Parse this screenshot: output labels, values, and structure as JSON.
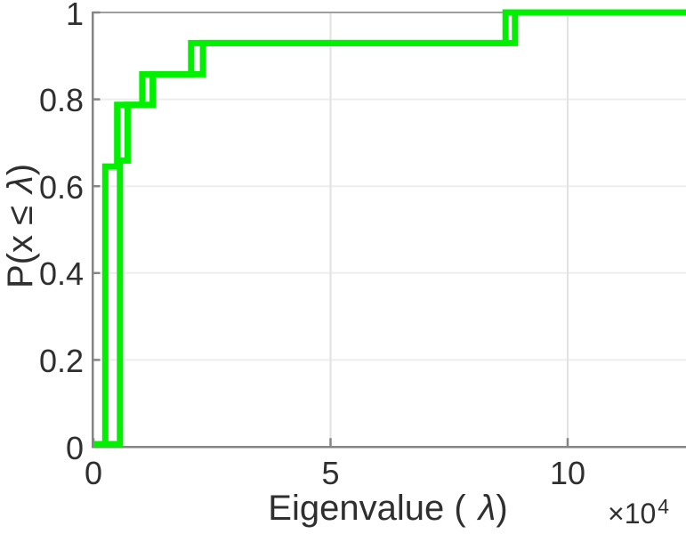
{
  "figure": {
    "background": "#ffffff",
    "line_color": "#00f000",
    "axis_color": "#858585",
    "top_border_color": "#9e9e9e",
    "grid_color_horizontal": "#ededed",
    "grid_color_vertical": "#e2e2e2",
    "text_color": "#2f2f2f"
  },
  "chart_data": {
    "type": "line",
    "subtype": "empirical-cdf-stairs",
    "title": "",
    "xlabel": {
      "prefix": "Eigenvalue (",
      "lambda": "λ",
      "suffix": ")"
    },
    "ylabel": {
      "prefix": "P(x ≤",
      "lambda": "λ",
      "suffix": ")"
    },
    "x_multiplier": {
      "base": "×10",
      "exp": "4"
    },
    "xlim": [
      0,
      12.5
    ],
    "ylim": [
      0,
      1
    ],
    "x_units_note": "x values in units of 10^4",
    "grid": true,
    "legend": "none",
    "xticks": [
      {
        "value": 0,
        "label": "0"
      },
      {
        "value": 5,
        "label": "5"
      },
      {
        "value": 10,
        "label": "10"
      }
    ],
    "yticks": [
      {
        "value": 0,
        "label": "0"
      },
      {
        "value": 0.2,
        "label": "0.2"
      },
      {
        "value": 0.4,
        "label": "0.4"
      },
      {
        "value": 0.6,
        "label": "0.6"
      },
      {
        "value": 0.8,
        "label": "0.8"
      },
      {
        "value": 1,
        "label": "1"
      }
    ],
    "series": [
      {
        "name": "ecdf-line-1",
        "color": "#00f000",
        "points": [
          [
            0,
            0
          ],
          [
            0.25,
            0
          ],
          [
            0.25,
            0.643
          ],
          [
            0.5,
            0.643
          ],
          [
            0.5,
            0.786
          ],
          [
            1.03,
            0.786
          ],
          [
            1.03,
            0.857
          ],
          [
            2.06,
            0.857
          ],
          [
            2.06,
            0.929
          ],
          [
            8.69,
            0.929
          ],
          [
            8.69,
            1
          ],
          [
            12.5,
            1
          ]
        ]
      },
      {
        "name": "ecdf-line-2",
        "color": "#00f000",
        "points": [
          [
            0,
            0
          ],
          [
            0.56,
            0
          ],
          [
            0.56,
            0.657
          ],
          [
            0.72,
            0.657
          ],
          [
            0.72,
            0.786
          ],
          [
            1.25,
            0.786
          ],
          [
            1.25,
            0.857
          ],
          [
            2.31,
            0.857
          ],
          [
            2.31,
            0.929
          ],
          [
            8.89,
            0.929
          ],
          [
            8.89,
            1
          ],
          [
            12.5,
            1
          ]
        ]
      }
    ]
  }
}
